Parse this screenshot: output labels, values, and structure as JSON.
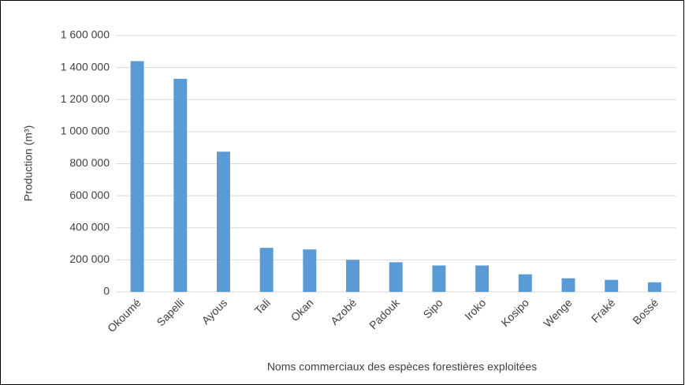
{
  "chart_data": {
    "type": "bar",
    "x_label": "Noms commerciaux des espèces forestières exploitées",
    "y_label": "Production (m³)",
    "categories": [
      "Okoumé",
      "Sapelli",
      "Ayous",
      "Tali",
      "Okan",
      "Azobé",
      "Padouk",
      "Sipo",
      "Iroko",
      "Kosipo",
      "Wenge",
      "Fraké",
      "Bossé"
    ],
    "values": [
      1440000,
      1330000,
      875000,
      275000,
      265000,
      200000,
      185000,
      165000,
      165000,
      110000,
      85000,
      75000,
      60000
    ],
    "color": "#5b9bd5",
    "ylim": [
      0,
      1600000
    ],
    "yticks": [
      0,
      {
        "value": 200000,
        "label": "200 000"
      },
      {
        "value": 400000,
        "label": "400 000"
      },
      {
        "value": 600000,
        "label": "600 000"
      },
      {
        "value": 800000,
        "label": "800 000"
      },
      {
        "value": 1000000,
        "label": "1 000 000"
      },
      {
        "value": 1200000,
        "label": "1 200 000"
      },
      {
        "value": 1400000,
        "label": "1 400 000"
      },
      {
        "value": 1600000,
        "label": "1 600 000"
      }
    ],
    "grid": true
  }
}
